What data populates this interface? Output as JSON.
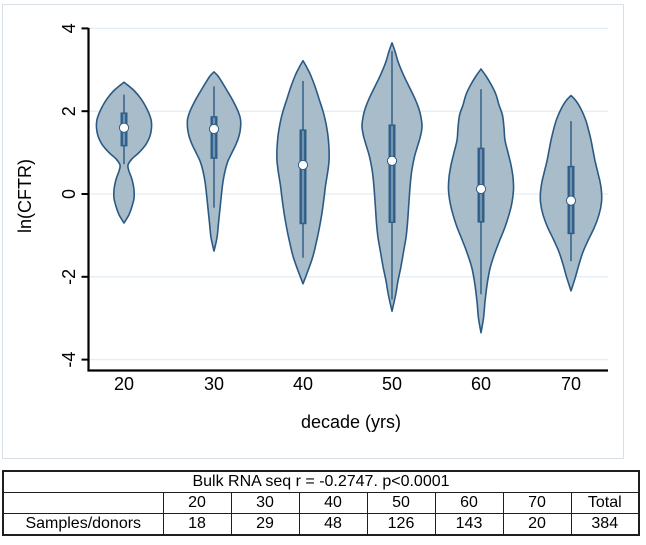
{
  "chart": {
    "colors": {
      "violin_fill": "#a9bcca",
      "violin_stroke": "#2a5a84",
      "box_fill": "#2f5f88",
      "box_inner_strip": "#7493ae",
      "median_fill": "#ffffff",
      "grid": "#e3edf4",
      "axis": "#000000",
      "figure_border": "#d8e0e6"
    }
  },
  "chart_data": {
    "type": "violin",
    "title": "",
    "xlabel": "decade (yrs)",
    "ylabel": "ln(CFTR)",
    "ylim": [
      -4,
      4
    ],
    "yticks": [
      4,
      2,
      0,
      -2,
      -4
    ],
    "grid": "horizontal",
    "categories": [
      "20",
      "30",
      "40",
      "50",
      "60",
      "70"
    ],
    "series": [
      {
        "category": "20",
        "median": 1.6,
        "q1": 1.15,
        "q3": 1.97,
        "whisker_low": 0.72,
        "whisker_high": 2.4,
        "range": [
          -0.7,
          2.7
        ],
        "profile": [
          [
            2.7,
            0
          ],
          [
            2.5,
            10
          ],
          [
            2.3,
            17
          ],
          [
            2.05,
            23
          ],
          [
            1.8,
            27
          ],
          [
            1.6,
            27.5
          ],
          [
            1.4,
            26
          ],
          [
            1.2,
            22
          ],
          [
            1.0,
            15
          ],
          [
            0.85,
            8
          ],
          [
            0.7,
            4
          ],
          [
            0.55,
            5
          ],
          [
            0.35,
            8
          ],
          [
            0.1,
            10
          ],
          [
            -0.1,
            10
          ],
          [
            -0.3,
            8
          ],
          [
            -0.5,
            5
          ],
          [
            -0.7,
            0
          ]
        ]
      },
      {
        "category": "30",
        "median": 1.57,
        "q1": 0.85,
        "q3": 1.88,
        "whisker_low": -0.33,
        "whisker_high": 2.6,
        "range": [
          -1.38,
          2.95
        ],
        "profile": [
          [
            2.95,
            0
          ],
          [
            2.85,
            4
          ],
          [
            2.7,
            8
          ],
          [
            2.5,
            13
          ],
          [
            2.25,
            19
          ],
          [
            2.0,
            24
          ],
          [
            1.8,
            26.5
          ],
          [
            1.6,
            26.5
          ],
          [
            1.4,
            25
          ],
          [
            1.2,
            22
          ],
          [
            1.0,
            18
          ],
          [
            0.8,
            14
          ],
          [
            0.55,
            11
          ],
          [
            0.3,
            9
          ],
          [
            0.0,
            7.5
          ],
          [
            -0.35,
            6
          ],
          [
            -0.7,
            4.5
          ],
          [
            -1.05,
            3
          ],
          [
            -1.38,
            0
          ]
        ]
      },
      {
        "category": "40",
        "median": 0.7,
        "q1": -0.73,
        "q3": 1.56,
        "whisker_low": -1.54,
        "whisker_high": 2.73,
        "range": [
          -2.17,
          3.22
        ],
        "profile": [
          [
            3.22,
            0
          ],
          [
            3.05,
            4
          ],
          [
            2.85,
            8
          ],
          [
            2.6,
            12
          ],
          [
            2.3,
            16
          ],
          [
            2.0,
            20
          ],
          [
            1.7,
            23
          ],
          [
            1.4,
            25
          ],
          [
            1.1,
            26
          ],
          [
            0.8,
            26
          ],
          [
            0.5,
            24.5
          ],
          [
            0.2,
            22.5
          ],
          [
            -0.1,
            21
          ],
          [
            -0.45,
            19
          ],
          [
            -0.8,
            16.5
          ],
          [
            -1.15,
            13.5
          ],
          [
            -1.5,
            10
          ],
          [
            -1.85,
            5
          ],
          [
            -2.17,
            0
          ]
        ]
      },
      {
        "category": "50",
        "median": 0.8,
        "q1": -0.7,
        "q3": 1.68,
        "whisker_low": -2.55,
        "whisker_high": 3.45,
        "range": [
          -2.83,
          3.65
        ],
        "profile": [
          [
            3.65,
            0
          ],
          [
            3.45,
            3
          ],
          [
            3.2,
            6
          ],
          [
            2.9,
            11
          ],
          [
            2.6,
            17
          ],
          [
            2.3,
            23
          ],
          [
            2.05,
            27
          ],
          [
            1.85,
            29
          ],
          [
            1.63,
            30
          ],
          [
            1.4,
            28.5
          ],
          [
            1.15,
            25.5
          ],
          [
            0.9,
            22.5
          ],
          [
            0.6,
            20
          ],
          [
            0.3,
            18.5
          ],
          [
            0.0,
            17.5
          ],
          [
            -0.35,
            16.5
          ],
          [
            -0.7,
            15.5
          ],
          [
            -1.05,
            14
          ],
          [
            -1.4,
            11.5
          ],
          [
            -1.75,
            9
          ],
          [
            -2.1,
            6
          ],
          [
            -2.45,
            3.5
          ],
          [
            -2.83,
            0
          ]
        ]
      },
      {
        "category": "60",
        "median": 0.12,
        "q1": -0.69,
        "q3": 1.12,
        "whisker_low": -2.42,
        "whisker_high": 2.53,
        "range": [
          -3.35,
          3.02
        ],
        "profile": [
          [
            3.02,
            0
          ],
          [
            2.85,
            5
          ],
          [
            2.65,
            10
          ],
          [
            2.4,
            15
          ],
          [
            2.15,
            18
          ],
          [
            1.9,
            21.5
          ],
          [
            1.6,
            23
          ],
          [
            1.3,
            24
          ],
          [
            1.0,
            27
          ],
          [
            0.7,
            30
          ],
          [
            0.4,
            32
          ],
          [
            0.1,
            32.5
          ],
          [
            -0.2,
            31
          ],
          [
            -0.5,
            28
          ],
          [
            -0.8,
            24
          ],
          [
            -1.1,
            19
          ],
          [
            -1.45,
            13.5
          ],
          [
            -1.8,
            9
          ],
          [
            -2.2,
            6
          ],
          [
            -2.6,
            4
          ],
          [
            -3.0,
            2.5
          ],
          [
            -3.35,
            0
          ]
        ]
      },
      {
        "category": "70",
        "median": -0.16,
        "q1": -0.97,
        "q3": 0.68,
        "whisker_low": -1.62,
        "whisker_high": 1.76,
        "range": [
          -2.34,
          2.38
        ],
        "profile": [
          [
            2.38,
            0
          ],
          [
            2.25,
            5
          ],
          [
            2.05,
            10
          ],
          [
            1.8,
            14.5
          ],
          [
            1.55,
            17.5
          ],
          [
            1.3,
            20
          ],
          [
            1.05,
            22
          ],
          [
            0.8,
            24
          ],
          [
            0.55,
            26.5
          ],
          [
            0.3,
            29
          ],
          [
            0.05,
            30.5
          ],
          [
            -0.2,
            30.5
          ],
          [
            -0.5,
            28
          ],
          [
            -0.8,
            23.5
          ],
          [
            -1.1,
            17.5
          ],
          [
            -1.4,
            12
          ],
          [
            -1.7,
            8
          ],
          [
            -2.0,
            4.5
          ],
          [
            -2.34,
            0
          ]
        ]
      }
    ]
  },
  "table": {
    "title": "Bulk RNA seq r = -0.2747. p<0.0001",
    "columns": [
      "",
      "20",
      "30",
      "40",
      "50",
      "60",
      "70",
      "Total"
    ],
    "rows": [
      {
        "label": "Samples/donors",
        "values": [
          "18",
          "29",
          "48",
          "126",
          "143",
          "20",
          "384"
        ]
      }
    ]
  }
}
